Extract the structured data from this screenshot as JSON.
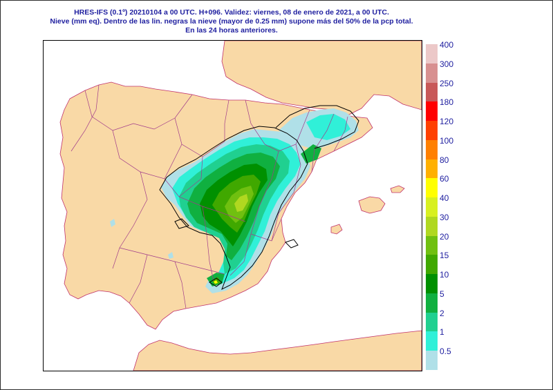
{
  "title": {
    "line1": "HRES-IFS (0.1º) 20210104 a 00 UTC.  H+096. Validez: viernes, 08 de enero de 2021,  a  00 UTC.",
    "line2": "Nieve (mm eq). Dentro de las lin. negras la nieve (mayor de 0.25 mm) supone más del 50% de la pcp total.",
    "line3": "En las 24 horas anteriores."
  },
  "colors": {
    "sea": "#ffffff",
    "land": "#f9d9a6",
    "borders": "#a03a8a",
    "coast": "#c0306a",
    "snow_outline": "#000000",
    "text": "#2020a0"
  },
  "legend": {
    "levels": [
      {
        "label": "400",
        "color": "#ecc8c8"
      },
      {
        "label": "300",
        "color": "#d89090"
      },
      {
        "label": "250",
        "color": "#c85858"
      },
      {
        "label": "180",
        "color": "#ff0000"
      },
      {
        "label": "120",
        "color": "#ff4000"
      },
      {
        "label": "100",
        "color": "#ff8000"
      },
      {
        "label": "80",
        "color": "#ffb000"
      },
      {
        "label": "60",
        "color": "#ffff00"
      },
      {
        "label": "40",
        "color": "#d8f020"
      },
      {
        "label": "30",
        "color": "#b0d820"
      },
      {
        "label": "20",
        "color": "#70c010"
      },
      {
        "label": "15",
        "color": "#40a800"
      },
      {
        "label": "10",
        "color": "#009000"
      },
      {
        "label": "5",
        "color": "#10b040"
      },
      {
        "label": "2",
        "color": "#20d090"
      },
      {
        "label": "1",
        "color": "#30f0d8"
      },
      {
        "label": "0.5",
        "color": "#b0e0e8"
      }
    ]
  }
}
